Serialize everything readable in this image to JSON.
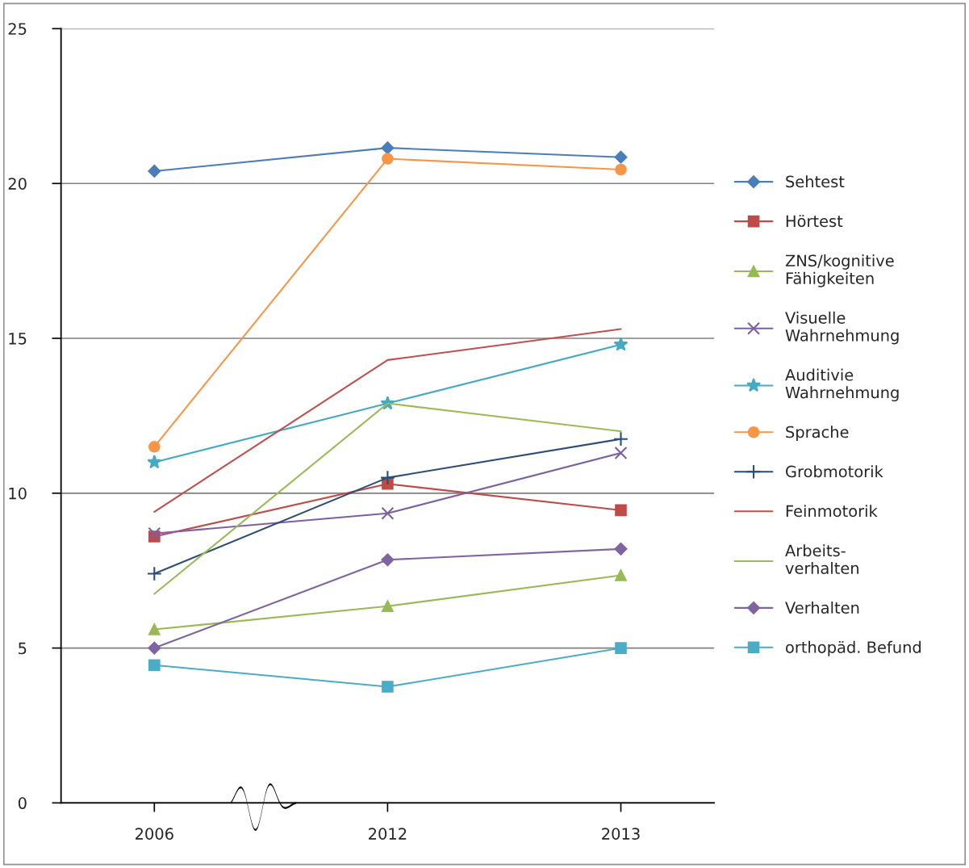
{
  "chart_data": {
    "type": "line",
    "categories": [
      "2006",
      "2012",
      "2013"
    ],
    "ylim": [
      0,
      25
    ],
    "yticks": [
      0,
      5,
      10,
      15,
      20,
      25
    ],
    "grid": "y",
    "legend": "right",
    "series": [
      {
        "name": "Sehtest",
        "color": "#4a7ebb",
        "marker": "diamond",
        "values": [
          20.4,
          21.15,
          20.85
        ]
      },
      {
        "name": "Hörtest",
        "color": "#be4b48",
        "marker": "square",
        "values": [
          8.6,
          10.3,
          9.45
        ]
      },
      {
        "name": "ZNS/kognitive\nFähigkeiten",
        "color": "#98b954",
        "marker": "triangle",
        "values": [
          5.6,
          6.35,
          7.35
        ]
      },
      {
        "name": "Visuelle\nWahrnehmung",
        "color": "#7d60a0",
        "marker": "cross",
        "values": [
          8.7,
          9.35,
          11.3
        ]
      },
      {
        "name": "Auditivie\nWahrnehmung",
        "color": "#46aac5",
        "marker": "star",
        "values": [
          11.0,
          12.9,
          14.8
        ]
      },
      {
        "name": "Sprache",
        "color": "#f79646",
        "marker": "circle",
        "values": [
          11.5,
          20.8,
          20.45
        ]
      },
      {
        "name": "Grobmotorik",
        "color": "#2c4d75",
        "marker": "plus",
        "values": [
          7.4,
          10.5,
          11.75
        ]
      },
      {
        "name": "Feinmotorik",
        "color": "#c0504d",
        "marker": "none",
        "values": [
          9.4,
          14.3,
          15.3
        ]
      },
      {
        "name": "Arbeits-\nverhalten",
        "color": "#9bbb59",
        "marker": "none",
        "values": [
          6.75,
          12.9,
          12.0
        ]
      },
      {
        "name": "Verhalten",
        "color": "#8064a2",
        "marker": "diamond",
        "values": [
          5.0,
          7.85,
          8.2
        ]
      },
      {
        "name": "orthopäd. Befund",
        "color": "#4bacc6",
        "marker": "square",
        "values": [
          4.45,
          3.75,
          5.0
        ]
      }
    ]
  }
}
